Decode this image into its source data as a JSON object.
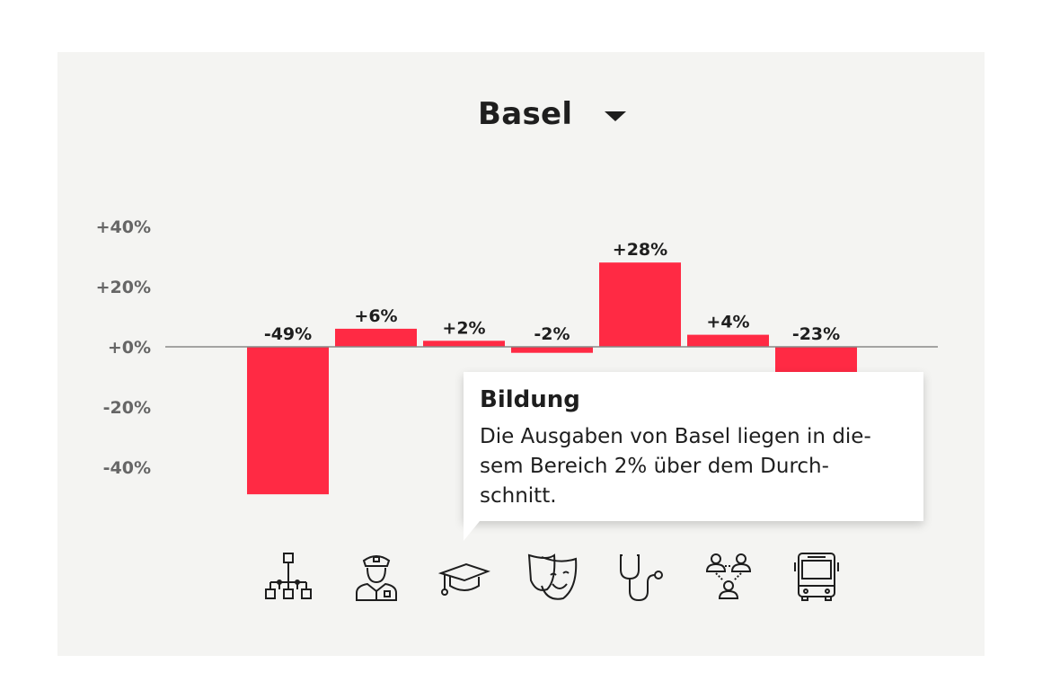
{
  "selector": {
    "city": "Basel"
  },
  "tooltip": {
    "title": "Bildung",
    "text": "Die Ausgaben von Basel liegen in die-\nsem Bereich 2% über dem Durch-\nschnitt."
  },
  "colors": {
    "bar": "#ff2a44",
    "axis": "#888888",
    "background": "#f4f4f2"
  },
  "chart_data": {
    "type": "bar",
    "categories": [
      "Allgemeine Verwaltung",
      "Öffentliche Sicherheit",
      "Bildung",
      "Kultur und Freizeit",
      "Gesundheit",
      "Soziale Wohlfahrt",
      "Verkehr"
    ],
    "icons": [
      "org-chart-icon",
      "police-officer-icon",
      "graduation-cap-icon",
      "theater-mask-icon",
      "stethoscope-icon",
      "people-network-icon",
      "bus-icon"
    ],
    "values": [
      -49,
      6,
      2,
      -2,
      28,
      4,
      -23
    ],
    "value_labels": [
      "-49%",
      "+6%",
      "+2%",
      "-2%",
      "+28%",
      "+4%",
      "-23%"
    ],
    "yticks": [
      40,
      20,
      0,
      -20,
      -40
    ],
    "ytick_labels": [
      "+40%",
      "+20%",
      "+0%",
      "-20%",
      "-40%"
    ],
    "ylim": [
      -40,
      40
    ],
    "grid": false,
    "legend": "none"
  }
}
